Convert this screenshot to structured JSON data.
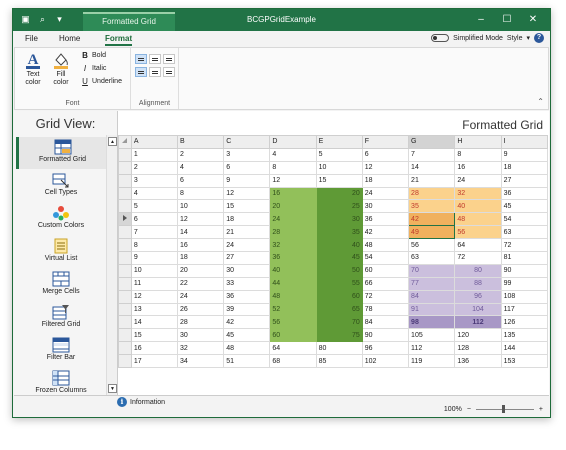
{
  "window": {
    "title": "BCGPGridExample",
    "context_tab": "Formatted Grid"
  },
  "tabs": [
    {
      "label": "File"
    },
    {
      "label": "Home"
    },
    {
      "label": "Format"
    }
  ],
  "tabs_right": {
    "simplified_mode": "Simplified Mode",
    "style": "Style",
    "help": "?"
  },
  "ribbon": {
    "font_group": {
      "label": "Font",
      "text_color": "Text\ncolor",
      "fill_color": "Fill\ncolor",
      "bold": "Bold",
      "italic": "Italic",
      "underline": "Underline"
    },
    "alignment_group": {
      "label": "Alignment"
    }
  },
  "sidebar": {
    "title": "Grid View:",
    "items": [
      {
        "label": "Formatted Grid",
        "icon": "formatted-grid-icon"
      },
      {
        "label": "Cell Types",
        "icon": "cell-types-icon"
      },
      {
        "label": "Custom Colors",
        "icon": "custom-colors-icon"
      },
      {
        "label": "Virtual List",
        "icon": "virtual-list-icon"
      },
      {
        "label": "Merge Cells",
        "icon": "merge-cells-icon"
      },
      {
        "label": "Filtered Grid",
        "icon": "filtered-grid-icon"
      },
      {
        "label": "Filter Bar",
        "icon": "filter-bar-icon"
      },
      {
        "label": "Frozen Columns",
        "icon": "frozen-columns-icon"
      }
    ]
  },
  "main_title": "Formatted Grid",
  "grid": {
    "columns": [
      "A",
      "B",
      "C",
      "D",
      "E",
      "F",
      "G",
      "H",
      "I"
    ],
    "current_row": 6,
    "selected_column": "G",
    "rows": [
      [
        1,
        2,
        3,
        4,
        5,
        6,
        7,
        8,
        9
      ],
      [
        2,
        4,
        6,
        8,
        10,
        12,
        14,
        16,
        18
      ],
      [
        3,
        6,
        9,
        12,
        15,
        18,
        21,
        24,
        27
      ],
      [
        4,
        8,
        12,
        16,
        20,
        24,
        28,
        32,
        36
      ],
      [
        5,
        10,
        15,
        20,
        25,
        30,
        35,
        40,
        45
      ],
      [
        6,
        12,
        18,
        24,
        30,
        36,
        42,
        48,
        54
      ],
      [
        7,
        14,
        21,
        28,
        35,
        42,
        49,
        56,
        63
      ],
      [
        8,
        16,
        24,
        32,
        40,
        48,
        56,
        64,
        72
      ],
      [
        9,
        18,
        27,
        36,
        45,
        54,
        63,
        72,
        81
      ],
      [
        10,
        20,
        30,
        40,
        50,
        60,
        70,
        80,
        90
      ],
      [
        11,
        22,
        33,
        44,
        55,
        66,
        77,
        88,
        99
      ],
      [
        12,
        24,
        36,
        48,
        60,
        72,
        84,
        96,
        108
      ],
      [
        13,
        26,
        39,
        52,
        65,
        78,
        91,
        104,
        117
      ],
      [
        14,
        28,
        42,
        56,
        70,
        84,
        98,
        112,
        126
      ],
      [
        15,
        30,
        45,
        60,
        75,
        90,
        105,
        120,
        135
      ],
      [
        16,
        32,
        48,
        64,
        80,
        96,
        112,
        128,
        144
      ],
      [
        17,
        34,
        51,
        68,
        85,
        102,
        119,
        136,
        153
      ]
    ],
    "colors": {
      "green_dark": "#5f9a36",
      "green_light": "#92c05a",
      "orange_cell": "#fbd28c",
      "orange_selected": "#f0b15e",
      "orange_text": "#c0392b",
      "purple_cell": "#cbbfdd",
      "purple_bold": "#a898c6",
      "purple_text": "#6f5a9a"
    }
  },
  "status": {
    "info": "Information"
  },
  "zoom": {
    "level": "100%",
    "minus": "−",
    "plus": "+"
  }
}
